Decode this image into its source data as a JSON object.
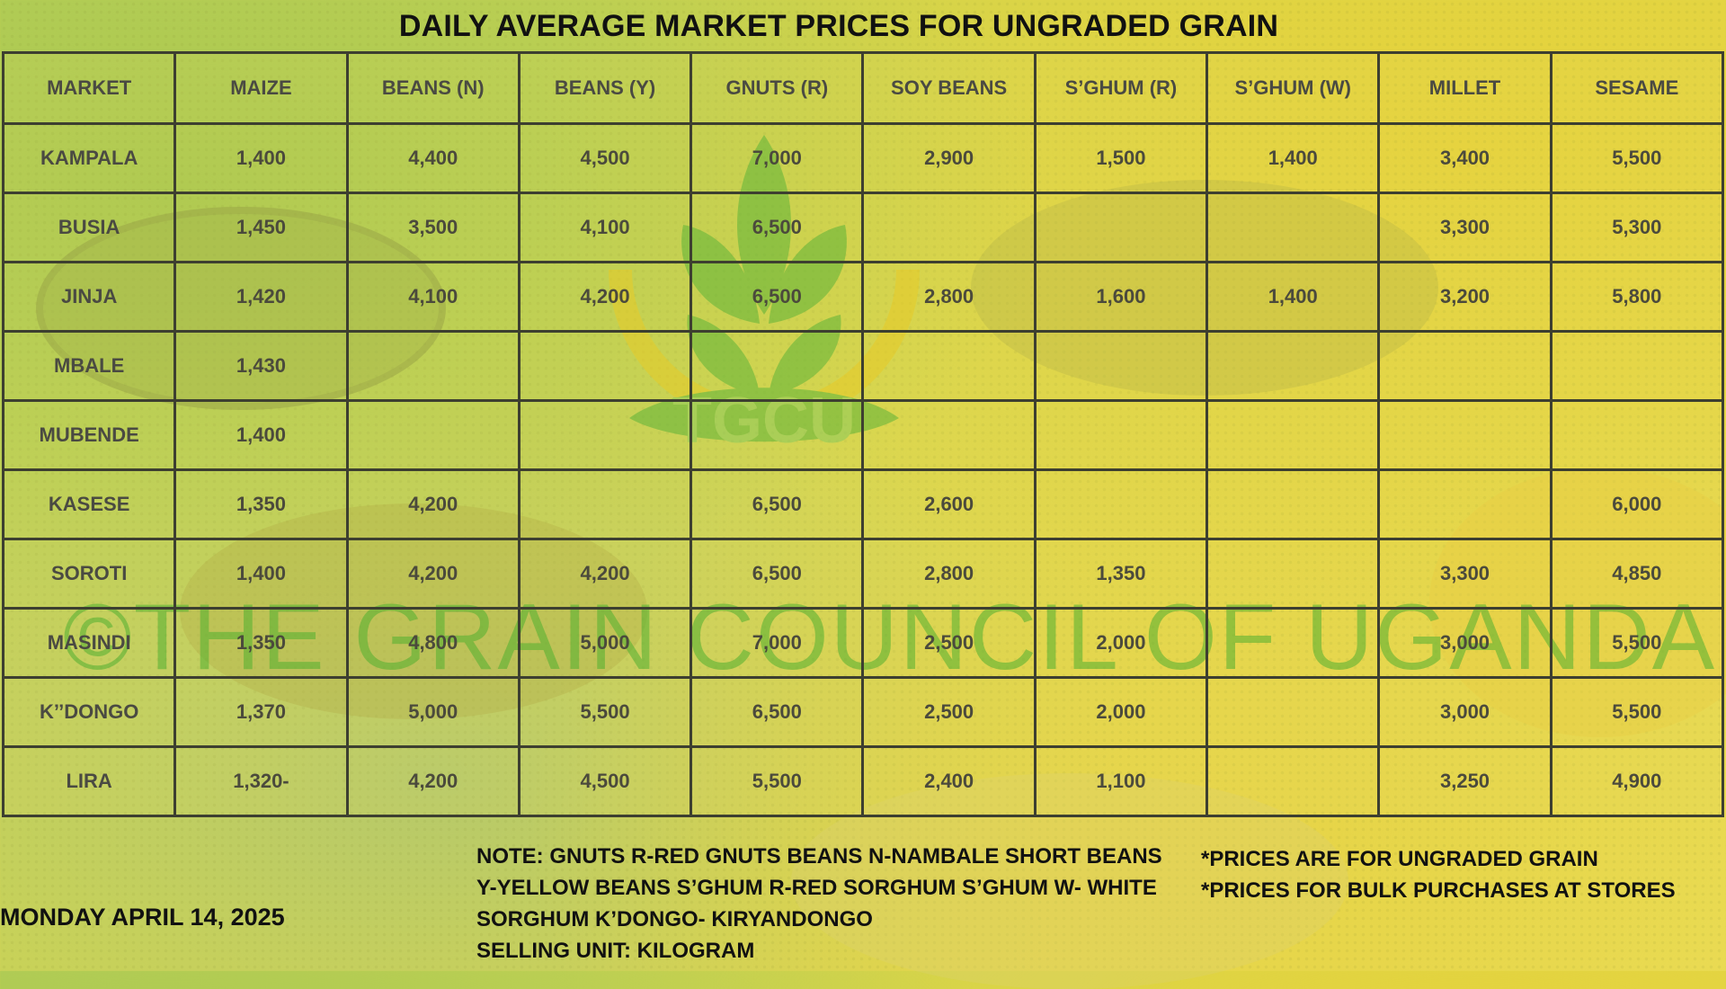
{
  "title": "DAILY AVERAGE MARKET PRICES FOR UNGRADED GRAIN",
  "logo": {
    "text": "TGCU"
  },
  "watermark": "©THE GRAIN COUNCIL OF UGANDA",
  "table": {
    "headers": [
      "MARKET",
      "MAIZE",
      "BEANS (N)",
      "BEANS (Y)",
      "GNUTS (R)",
      "SOY BEANS",
      "S’GHUM (R)",
      "S’GHUM (W)",
      "MILLET",
      "SESAME"
    ],
    "rows": [
      [
        "KAMPALA",
        "1,400",
        "4,400",
        "4,500",
        "7,000",
        "2,900",
        "1,500",
        "1,400",
        "3,400",
        "5,500"
      ],
      [
        "BUSIA",
        "1,450",
        "3,500",
        "4,100",
        "6,500",
        "",
        "",
        "",
        "3,300",
        "5,300"
      ],
      [
        "JINJA",
        "1,420",
        "4,100",
        "4,200",
        "6,500",
        "2,800",
        "1,600",
        "1,400",
        "3,200",
        "5,800"
      ],
      [
        "MBALE",
        "1,430",
        "",
        "",
        "",
        "",
        "",
        "",
        "",
        ""
      ],
      [
        "MUBENDE",
        "1,400",
        "",
        "",
        "",
        "",
        "",
        "",
        "",
        ""
      ],
      [
        "KASESE",
        "1,350",
        "4,200",
        "",
        "6,500",
        "2,600",
        "",
        "",
        "",
        "6,000"
      ],
      [
        "SOROTI",
        "1,400",
        "4,200",
        "4,200",
        "6,500",
        "2,800",
        "1,350",
        "",
        "3,300",
        "4,850"
      ],
      [
        "MASINDI",
        "1,350",
        "4,800",
        "5,000",
        "7,000",
        "2,500",
        "2,000",
        "",
        "3,000",
        "5,500"
      ],
      [
        "K’’DONGO",
        "1,370",
        "5,000",
        "5,500",
        "6,500",
        "2,500",
        "2,000",
        "",
        "3,000",
        "5,500"
      ],
      [
        "LIRA",
        "1,320-",
        "4,200",
        "4,500",
        "5,500",
        "2,400",
        "1,100",
        "",
        "3,250",
        "4,900"
      ]
    ]
  },
  "footer": {
    "date": "MONDAY APRIL 14, 2025",
    "notes": [
      "NOTE: GNUTS R-RED GNUTS  BEANS N-NAMBALE SHORT BEANS",
      "Y-YELLOW BEANS  S’GHUM R-RED SORGHUM  S’GHUM W- WHITE",
      "SORGHUM K’DONGO- KIRYANDONGO",
      "SELLING UNIT: KILOGRAM"
    ],
    "disclaimers": [
      "*PRICES ARE FOR UNGRADED GRAIN",
      "*PRICES FOR BULK PURCHASES AT STORES"
    ]
  },
  "colors": {
    "background": "#d6d84f",
    "grid_lines": "#3d3f30",
    "watermark_green": "#3caa28",
    "logo_green": "#4caf32",
    "logo_yellow": "#e8c81e"
  }
}
